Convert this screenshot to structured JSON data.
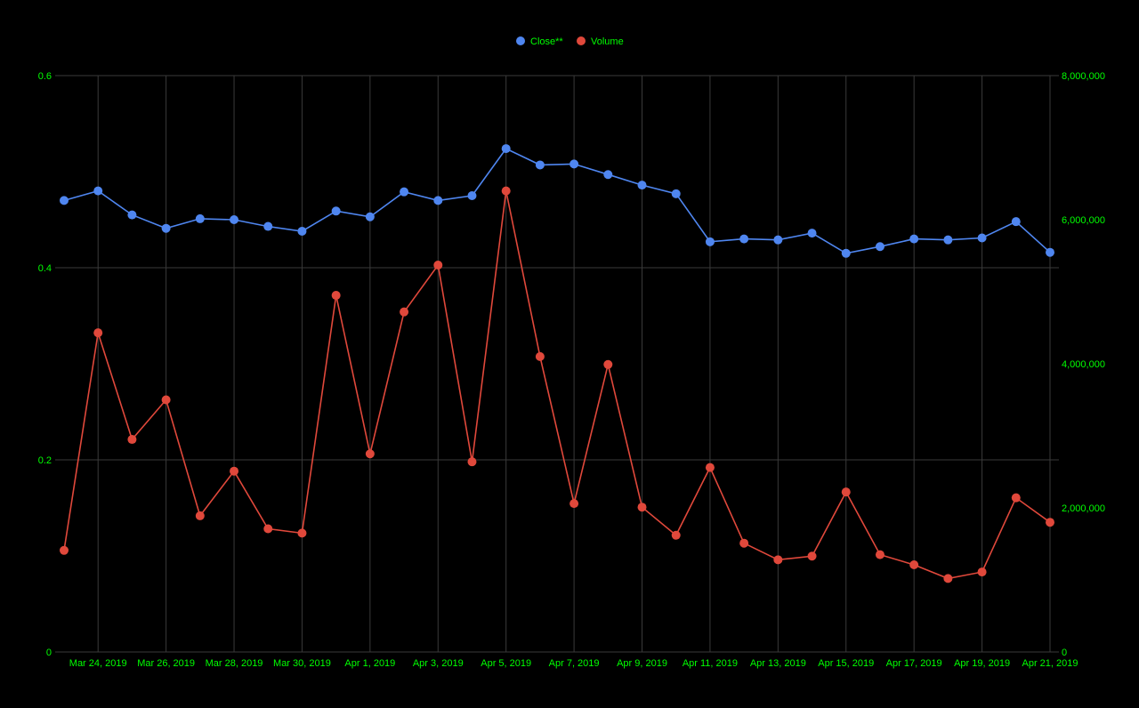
{
  "chart_data": {
    "type": "line",
    "legend_position": "top-center",
    "grid": true,
    "colors": {
      "background": "#000000",
      "text": "#00ff00",
      "grid": "#3a3a3a",
      "close": "#4f86f0",
      "volume": "#e0483b"
    },
    "x": [
      "2019-03-23",
      "2019-03-24",
      "2019-03-25",
      "2019-03-26",
      "2019-03-27",
      "2019-03-28",
      "2019-03-29",
      "2019-03-30",
      "2019-03-31",
      "2019-04-01",
      "2019-04-02",
      "2019-04-03",
      "2019-04-04",
      "2019-04-05",
      "2019-04-06",
      "2019-04-07",
      "2019-04-08",
      "2019-04-09",
      "2019-04-10",
      "2019-04-11",
      "2019-04-12",
      "2019-04-13",
      "2019-04-14",
      "2019-04-15",
      "2019-04-16",
      "2019-04-17",
      "2019-04-18",
      "2019-04-19",
      "2019-04-20",
      "2019-04-21"
    ],
    "x_tick_labels": [
      "Mar 24, 2019",
      "Mar 26, 2019",
      "Mar 28, 2019",
      "Mar 30, 2019",
      "Apr 1, 2019",
      "Apr 3, 2019",
      "Apr 5, 2019",
      "Apr 7, 2019",
      "Apr 9, 2019",
      "Apr 11, 2019",
      "Apr 13, 2019",
      "Apr 15, 2019",
      "Apr 17, 2019",
      "Apr 19, 2019",
      "Apr 21, 2019"
    ],
    "y_left_ticks": [
      "0",
      "0.2",
      "0.4",
      "0.6"
    ],
    "y_right_ticks": [
      "0",
      "2,000,000",
      "4,000,000",
      "6,000,000",
      "8,000,000"
    ],
    "ylim_left": [
      0,
      0.6
    ],
    "ylim_right": [
      0,
      8000000
    ],
    "series": [
      {
        "name": "Close**",
        "axis": "left",
        "values": [
          0.47,
          0.48,
          0.455,
          0.441,
          0.451,
          0.45,
          0.443,
          0.438,
          0.459,
          0.453,
          0.479,
          0.47,
          0.475,
          0.524,
          0.507,
          0.508,
          0.497,
          0.486,
          0.477,
          0.427,
          0.43,
          0.429,
          0.436,
          0.415,
          0.422,
          0.43,
          0.429,
          0.431,
          0.448,
          0.416
        ]
      },
      {
        "name": "Volume",
        "axis": "right",
        "values": [
          1410000,
          4430000,
          2950000,
          3500000,
          1890000,
          2510000,
          1710000,
          1650000,
          4950000,
          2750000,
          4720000,
          5370000,
          2640000,
          6400000,
          4100000,
          2060000,
          3990000,
          2010000,
          1620000,
          2560000,
          1510000,
          1280000,
          1330000,
          2220000,
          1350000,
          1210000,
          1020000,
          1110000,
          2140000,
          1800000
        ]
      }
    ]
  }
}
